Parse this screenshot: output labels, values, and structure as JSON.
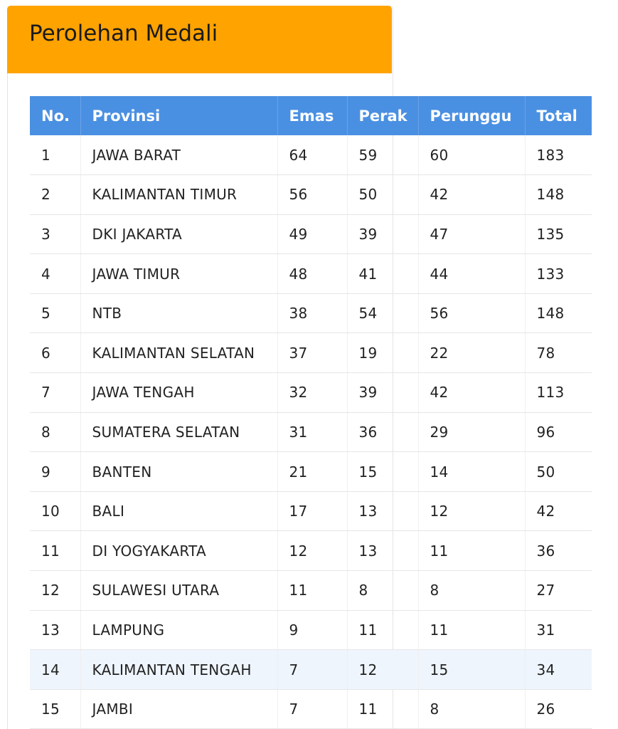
{
  "panel": {
    "title": "Perolehan Medali",
    "header_color": "#ffa300"
  },
  "table": {
    "header_color": "#4a90e2",
    "columns": [
      "No.",
      "Provinsi",
      "Emas",
      "Perak",
      "Perunggu",
      "Total"
    ],
    "rows": [
      [
        "1",
        "JAWA BARAT",
        "64",
        "59",
        "60",
        "183"
      ],
      [
        "2",
        "KALIMANTAN TIMUR",
        "56",
        "50",
        "42",
        "148"
      ],
      [
        "3",
        "DKI JAKARTA",
        "49",
        "39",
        "47",
        "135"
      ],
      [
        "4",
        "JAWA TIMUR",
        "48",
        "41",
        "44",
        "133"
      ],
      [
        "5",
        "NTB",
        "38",
        "54",
        "56",
        "148"
      ],
      [
        "6",
        "KALIMANTAN SELATAN",
        "37",
        "19",
        "22",
        "78"
      ],
      [
        "7",
        "JAWA TENGAH",
        "32",
        "39",
        "42",
        "113"
      ],
      [
        "8",
        "SUMATERA SELATAN",
        "31",
        "36",
        "29",
        "96"
      ],
      [
        "9",
        "BANTEN",
        "21",
        "15",
        "14",
        "50"
      ],
      [
        "10",
        "BALI",
        "17",
        "13",
        "12",
        "42"
      ],
      [
        "11",
        "DI YOGYAKARTA",
        "12",
        "13",
        "11",
        "36"
      ],
      [
        "12",
        "SULAWESI UTARA",
        "11",
        "8",
        "8",
        "27"
      ],
      [
        "13",
        "LAMPUNG",
        "9",
        "11",
        "11",
        "31"
      ],
      [
        "14",
        "KALIMANTAN TENGAH",
        "7",
        "12",
        "15",
        "34"
      ],
      [
        "15",
        "JAMBI",
        "7",
        "11",
        "8",
        "26"
      ]
    ],
    "highlighted_row": 13
  }
}
